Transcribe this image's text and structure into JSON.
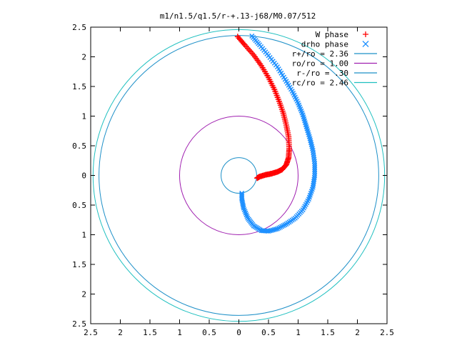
{
  "chart_data": {
    "type": "scatter",
    "title": "m1/n1.5/q1.5/r-+.13-j68/M0.07/512",
    "xlabel": "",
    "ylabel": "",
    "xlim": [
      -2.5,
      2.5
    ],
    "ylim": [
      -2.5,
      2.5
    ],
    "x_ticks": [
      "2.5",
      "2",
      "1.5",
      "1",
      "0.5",
      "0",
      "0.5",
      "1",
      "1.5",
      "2",
      "2.5"
    ],
    "y_ticks": [
      "2.5",
      "2",
      "1.5",
      "1",
      "0.5",
      "0",
      "0.5",
      "1",
      "1.5",
      "2",
      "2.5"
    ],
    "grid": false,
    "legend_position": "top-right",
    "circles": [
      {
        "name": "r+/ro = 2.36",
        "radius": 2.36,
        "color": "#1e90c8"
      },
      {
        "name": "ro/ro = 1.00",
        "radius": 1.0,
        "color": "#a020b0"
      },
      {
        "name": "r-/ro = .30",
        "radius": 0.3,
        "color": "#1e90c8"
      },
      {
        "name": "rc/ro = 2.46",
        "radius": 2.46,
        "color": "#20c0c0"
      }
    ],
    "series": [
      {
        "name": "W phase",
        "marker": "+",
        "color": "#ff0000",
        "x": [
          -0.02,
          0.1,
          0.25,
          0.38,
          0.5,
          0.6,
          0.68,
          0.75,
          0.8,
          0.84,
          0.85,
          0.84,
          0.8,
          0.73,
          0.65,
          0.55,
          0.45,
          0.35,
          0.3
        ],
        "y": [
          2.34,
          2.2,
          2.03,
          1.85,
          1.65,
          1.45,
          1.25,
          1.05,
          0.85,
          0.65,
          0.45,
          0.3,
          0.18,
          0.1,
          0.06,
          0.03,
          0.01,
          -0.02,
          -0.05
        ]
      },
      {
        "name": "drho phase",
        "marker": "x",
        "color": "#1e90ff",
        "x": [
          0.22,
          0.35,
          0.5,
          0.65,
          0.78,
          0.9,
          1.0,
          1.08,
          1.14,
          1.2,
          1.25,
          1.28,
          1.28,
          1.25,
          1.18,
          1.08,
          0.95,
          0.8,
          0.65,
          0.5,
          0.38,
          0.25,
          0.15,
          0.08,
          0.05,
          0.05
        ],
        "y": [
          2.35,
          2.2,
          2.02,
          1.83,
          1.62,
          1.42,
          1.22,
          1.02,
          0.82,
          0.62,
          0.42,
          0.2,
          0.0,
          -0.2,
          -0.4,
          -0.58,
          -0.72,
          -0.82,
          -0.9,
          -0.94,
          -0.93,
          -0.85,
          -0.72,
          -0.55,
          -0.4,
          -0.28
        ]
      }
    ]
  }
}
